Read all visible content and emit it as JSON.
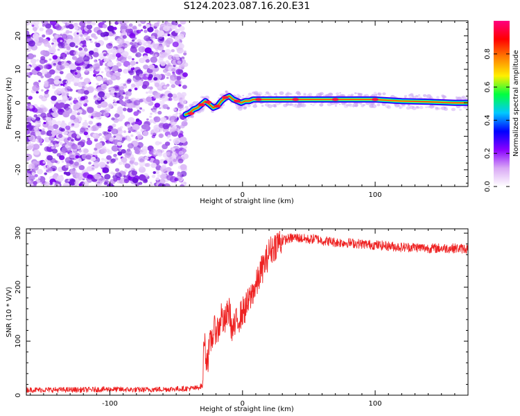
{
  "title": "S124.2023.087.16.20.E31",
  "chart_data": [
    {
      "type": "heatmap",
      "xlabel": "Height of straight line (km)",
      "ylabel": "Frequency (Hz)",
      "xlim": [
        -163,
        170
      ],
      "ylim": [
        -25,
        24.5
      ],
      "x_ticks": [
        -100,
        0,
        100
      ],
      "y_ticks": [
        20,
        10,
        0,
        -10,
        -20
      ],
      "noise_region_x": [
        -163,
        -43
      ],
      "signal_track": {
        "x": [
          -43,
          -40,
          -37,
          -34,
          -31,
          -28,
          -25,
          -22,
          -19,
          -16,
          -13,
          -10,
          -7,
          -4,
          -1,
          2,
          5,
          8,
          12,
          20,
          40,
          60,
          80,
          100,
          120,
          140,
          160,
          170
        ],
        "y": [
          -3.5,
          -3.0,
          -2.0,
          -1.5,
          -0.5,
          0.5,
          -0.5,
          -1.5,
          -1.0,
          0.5,
          1.5,
          2.0,
          1.0,
          0.5,
          0,
          0.5,
          0.5,
          1.0,
          1.0,
          1.0,
          1.0,
          1.0,
          1.0,
          1.0,
          0.5,
          0.3,
          0,
          0
        ]
      },
      "colorbar": {
        "label": "Normalized spectral amplitude",
        "ticks": [
          0.0,
          0.2,
          0.4,
          0.6,
          0.8
        ],
        "range": [
          0,
          1
        ],
        "colors": [
          "#ffffff",
          "#d9a8f5",
          "#8a00ff",
          "#0000ff",
          "#00c8ff",
          "#00ff40",
          "#fff000",
          "#ff8000",
          "#ff0000",
          "#ff0080"
        ]
      }
    },
    {
      "type": "line",
      "xlabel": "Height of straight line (km)",
      "ylabel": "SNR (10 * V/V)",
      "xlim": [
        -163,
        170
      ],
      "ylim": [
        0,
        308
      ],
      "x_ticks": [
        -100,
        0,
        100
      ],
      "y_ticks": [
        0,
        100,
        200,
        300
      ],
      "line_color": "#ee2222",
      "series": [
        {
          "x": [
            -163,
            -140,
            -120,
            -100,
            -80,
            -60,
            -45,
            -35,
            -30,
            -29,
            -28,
            -26,
            -24,
            -22,
            -20,
            -18,
            -16,
            -14,
            -12,
            -10,
            -8,
            -6,
            -4,
            -2,
            0,
            2,
            4,
            6,
            8,
            10,
            12,
            14,
            16,
            18,
            20,
            22,
            24,
            26,
            28,
            30,
            35,
            40,
            45,
            50,
            55,
            60,
            65,
            70,
            80,
            90,
            100,
            110,
            120,
            130,
            140,
            150,
            160,
            170
          ],
          "y": [
            10,
            10,
            10,
            11,
            10,
            11,
            12,
            13,
            18,
            120,
            75,
            70,
            100,
            115,
            125,
            120,
            150,
            130,
            145,
            160,
            120,
            125,
            140,
            145,
            155,
            160,
            170,
            180,
            195,
            200,
            215,
            230,
            240,
            250,
            265,
            270,
            275,
            282,
            284,
            286,
            290,
            292,
            290,
            288,
            290,
            286,
            285,
            283,
            282,
            280,
            278,
            276,
            274,
            274,
            272,
            272,
            272,
            271
          ]
        }
      ]
    }
  ]
}
